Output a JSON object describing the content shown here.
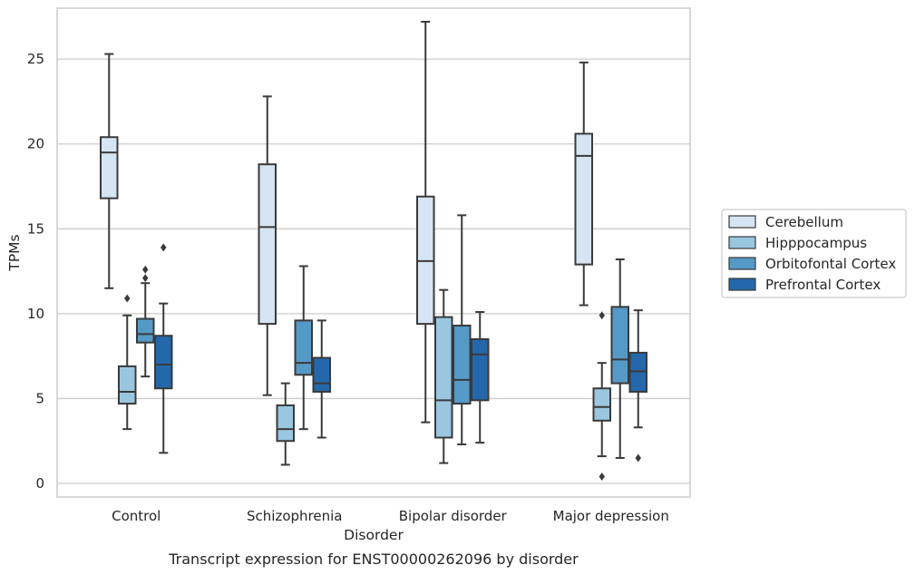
{
  "chart_data": {
    "type": "box",
    "caption": "Transcript expression for ENST00000262096 by disorder",
    "xlabel": "Disorder",
    "ylabel": "TPMs",
    "ylim": [
      -0.8,
      28
    ],
    "yticks": [
      0,
      5,
      10,
      15,
      20,
      25
    ],
    "grid": true,
    "legend_position": "right",
    "categories": [
      "Control",
      "Schizophrenia",
      "Bipolar disorder",
      "Major depression"
    ],
    "series": [
      {
        "name": "Cerebellum",
        "color": "#d6e5f3",
        "boxes": [
          {
            "low": 11.5,
            "q1": 16.8,
            "median": 19.5,
            "q3": 20.4,
            "high": 25.3,
            "outliers": []
          },
          {
            "low": 5.2,
            "q1": 9.4,
            "median": 15.1,
            "q3": 18.8,
            "high": 22.8,
            "outliers": []
          },
          {
            "low": 3.6,
            "q1": 9.4,
            "median": 13.1,
            "q3": 16.9,
            "high": 27.2,
            "outliers": []
          },
          {
            "low": 10.5,
            "q1": 12.9,
            "median": 19.3,
            "q3": 20.6,
            "high": 24.8,
            "outliers": []
          }
        ]
      },
      {
        "name": "Hipppocampus",
        "color": "#9bc6e0",
        "boxes": [
          {
            "low": 3.2,
            "q1": 4.7,
            "median": 5.4,
            "q3": 6.9,
            "high": 9.9,
            "outliers": [
              10.9
            ]
          },
          {
            "low": 1.1,
            "q1": 2.5,
            "median": 3.2,
            "q3": 4.6,
            "high": 5.9,
            "outliers": []
          },
          {
            "low": 1.2,
            "q1": 2.7,
            "median": 4.9,
            "q3": 9.8,
            "high": 11.4,
            "outliers": []
          },
          {
            "low": 1.6,
            "q1": 3.7,
            "median": 4.5,
            "q3": 5.6,
            "high": 7.1,
            "outliers": [
              9.9,
              0.4
            ]
          }
        ]
      },
      {
        "name": "Orbitofontal Cortex",
        "color": "#5599c7",
        "boxes": [
          {
            "low": 6.3,
            "q1": 8.3,
            "median": 8.8,
            "q3": 9.7,
            "high": 11.8,
            "outliers": [
              12.1,
              12.6
            ]
          },
          {
            "low": 3.2,
            "q1": 6.4,
            "median": 7.1,
            "q3": 9.6,
            "high": 12.8,
            "outliers": []
          },
          {
            "low": 2.3,
            "q1": 4.7,
            "median": 6.1,
            "q3": 9.3,
            "high": 15.8,
            "outliers": []
          },
          {
            "low": 1.5,
            "q1": 5.9,
            "median": 7.3,
            "q3": 10.4,
            "high": 13.2,
            "outliers": []
          }
        ]
      },
      {
        "name": "Prefrontal Cortex",
        "color": "#2468ab",
        "boxes": [
          {
            "low": 1.8,
            "q1": 5.6,
            "median": 7.0,
            "q3": 8.7,
            "high": 10.6,
            "outliers": [
              13.9
            ]
          },
          {
            "low": 2.7,
            "q1": 5.4,
            "median": 5.9,
            "q3": 7.4,
            "high": 9.6,
            "outliers": []
          },
          {
            "low": 2.4,
            "q1": 4.9,
            "median": 7.6,
            "q3": 8.5,
            "high": 10.1,
            "outliers": []
          },
          {
            "low": 3.3,
            "q1": 5.4,
            "median": 6.6,
            "q3": 7.7,
            "high": 10.2,
            "outliers": [
              1.5
            ]
          }
        ]
      }
    ]
  }
}
